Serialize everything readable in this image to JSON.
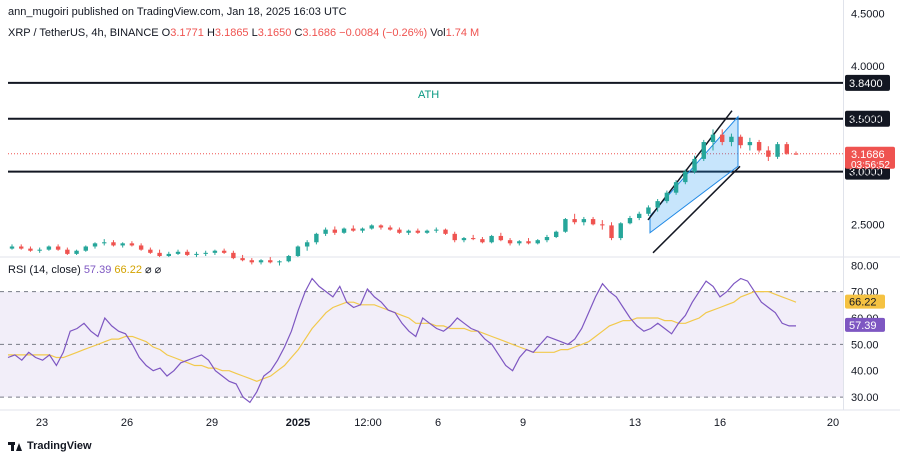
{
  "header": {
    "publisher": "ann_mugoiri published on TradingView.com, Jan 18, 2025 16:03 UTC",
    "symbol": "XRP / TetherUS, 4h, BINANCE",
    "o_label": "O",
    "o_value": "3.1771",
    "h_label": "H",
    "h_value": "3.1865",
    "l_label": "L",
    "l_value": "3.1650",
    "c_label": "C",
    "c_value": "3.1686",
    "change": "−0.0084 (−0.26%)",
    "vol_label": "Vol",
    "vol_value": "1.74 M"
  },
  "rsi_header": {
    "label": "RSI (14, close)",
    "value": "57.39",
    "ma_value": "66.22",
    "icons": "⌀ ⌀"
  },
  "footer": {
    "brand": "TradingView"
  },
  "colors": {
    "up": "#26a69a",
    "down": "#ef5350",
    "rsi": "#7e57c2",
    "rsi_ma": "#f2c94c",
    "channel": "#1e88e5",
    "ath_text": "#089981",
    "level": "#131722"
  },
  "chart_data": [
    {
      "type": "candlestick",
      "ylim": [
        2.2,
        4.55
      ],
      "y_ticks": [
        "2.5000",
        "3.0000",
        "3.5000",
        "4.0000",
        "4.5000"
      ],
      "x_ticks": [
        "23",
        "26",
        "29",
        "2025",
        "12:00",
        "6",
        "9",
        "13",
        "16",
        "20"
      ],
      "levels": [
        {
          "price": 3.84,
          "label": "3.8400"
        },
        {
          "price": 3.5,
          "label": "3.5000"
        },
        {
          "price": 3.0,
          "label": "3.0000"
        }
      ],
      "ath_label": "ATH",
      "last_price": {
        "price": 3.1686,
        "label": "3.1686",
        "countdown": "03:56:52"
      },
      "candles": [
        [
          2.27,
          2.31,
          2.26,
          2.29
        ],
        [
          2.29,
          2.31,
          2.26,
          2.27
        ],
        [
          2.27,
          2.29,
          2.24,
          2.25
        ],
        [
          2.25,
          2.28,
          2.23,
          2.26
        ],
        [
          2.26,
          2.3,
          2.25,
          2.29
        ],
        [
          2.29,
          2.31,
          2.25,
          2.26
        ],
        [
          2.26,
          2.28,
          2.21,
          2.22
        ],
        [
          2.22,
          2.26,
          2.21,
          2.25
        ],
        [
          2.25,
          2.3,
          2.24,
          2.29
        ],
        [
          2.29,
          2.33,
          2.27,
          2.32
        ],
        [
          2.32,
          2.36,
          2.3,
          2.33
        ],
        [
          2.33,
          2.35,
          2.29,
          2.3
        ],
        [
          2.3,
          2.33,
          2.28,
          2.32
        ],
        [
          2.32,
          2.34,
          2.29,
          2.3
        ],
        [
          2.3,
          2.32,
          2.25,
          2.26
        ],
        [
          2.26,
          2.28,
          2.22,
          2.23
        ],
        [
          2.23,
          2.26,
          2.19,
          2.2
        ],
        [
          2.2,
          2.24,
          2.19,
          2.22
        ],
        [
          2.22,
          2.26,
          2.21,
          2.24
        ],
        [
          2.24,
          2.26,
          2.2,
          2.21
        ],
        [
          2.21,
          2.24,
          2.19,
          2.22
        ],
        [
          2.22,
          2.25,
          2.2,
          2.23
        ],
        [
          2.23,
          2.26,
          2.21,
          2.25
        ],
        [
          2.25,
          2.27,
          2.22,
          2.23
        ],
        [
          2.23,
          2.25,
          2.17,
          2.18
        ],
        [
          2.18,
          2.21,
          2.15,
          2.16
        ],
        [
          2.16,
          2.18,
          2.12,
          2.14
        ],
        [
          2.14,
          2.17,
          2.12,
          2.16
        ],
        [
          2.16,
          2.19,
          2.13,
          2.14
        ],
        [
          2.14,
          2.16,
          2.11,
          2.15
        ],
        [
          2.15,
          2.21,
          2.14,
          2.2
        ],
        [
          2.2,
          2.3,
          2.19,
          2.29
        ],
        [
          2.29,
          2.35,
          2.25,
          2.33
        ],
        [
          2.33,
          2.42,
          2.31,
          2.41
        ],
        [
          2.41,
          2.47,
          2.39,
          2.45
        ],
        [
          2.45,
          2.48,
          2.4,
          2.42
        ],
        [
          2.42,
          2.47,
          2.41,
          2.46
        ],
        [
          2.46,
          2.49,
          2.43,
          2.44
        ],
        [
          2.44,
          2.47,
          2.42,
          2.46
        ],
        [
          2.46,
          2.5,
          2.45,
          2.49
        ],
        [
          2.49,
          2.5,
          2.45,
          2.47
        ],
        [
          2.47,
          2.49,
          2.44,
          2.45
        ],
        [
          2.45,
          2.47,
          2.41,
          2.42
        ],
        [
          2.42,
          2.45,
          2.4,
          2.44
        ],
        [
          2.44,
          2.46,
          2.41,
          2.42
        ],
        [
          2.42,
          2.45,
          2.41,
          2.44
        ],
        [
          2.44,
          2.47,
          2.42,
          2.45
        ],
        [
          2.45,
          2.46,
          2.4,
          2.41
        ],
        [
          2.41,
          2.43,
          2.33,
          2.35
        ],
        [
          2.35,
          2.38,
          2.33,
          2.37
        ],
        [
          2.37,
          2.4,
          2.35,
          2.36
        ],
        [
          2.36,
          2.38,
          2.32,
          2.33
        ],
        [
          2.33,
          2.4,
          2.32,
          2.39
        ],
        [
          2.39,
          2.42,
          2.34,
          2.35
        ],
        [
          2.35,
          2.37,
          2.3,
          2.32
        ],
        [
          2.32,
          2.35,
          2.3,
          2.34
        ],
        [
          2.34,
          2.37,
          2.31,
          2.32
        ],
        [
          2.32,
          2.36,
          2.31,
          2.35
        ],
        [
          2.35,
          2.4,
          2.33,
          2.38
        ],
        [
          2.38,
          2.44,
          2.37,
          2.43
        ],
        [
          2.43,
          2.56,
          2.42,
          2.55
        ],
        [
          2.55,
          2.6,
          2.5,
          2.52
        ],
        [
          2.52,
          2.57,
          2.49,
          2.55
        ],
        [
          2.55,
          2.57,
          2.49,
          2.5
        ],
        [
          2.5,
          2.54,
          2.45,
          2.49
        ],
        [
          2.49,
          2.52,
          2.35,
          2.37
        ],
        [
          2.37,
          2.52,
          2.35,
          2.51
        ],
        [
          2.51,
          2.58,
          2.5,
          2.56
        ],
        [
          2.56,
          2.62,
          2.54,
          2.6
        ],
        [
          2.6,
          2.68,
          2.58,
          2.66
        ],
        [
          2.66,
          2.74,
          2.62,
          2.72
        ],
        [
          2.72,
          2.82,
          2.7,
          2.8
        ],
        [
          2.8,
          2.92,
          2.78,
          2.9
        ],
        [
          2.9,
          3.02,
          2.88,
          3.0
        ],
        [
          3.0,
          3.15,
          2.98,
          3.12
        ],
        [
          3.12,
          3.3,
          3.1,
          3.28
        ],
        [
          3.28,
          3.4,
          3.2,
          3.35
        ],
        [
          3.35,
          3.4,
          3.25,
          3.28
        ],
        [
          3.28,
          3.36,
          3.24,
          3.33
        ],
        [
          3.33,
          3.35,
          3.22,
          3.25
        ],
        [
          3.25,
          3.32,
          3.2,
          3.28
        ],
        [
          3.28,
          3.3,
          3.18,
          3.2
        ],
        [
          3.2,
          3.24,
          3.1,
          3.14
        ],
        [
          3.14,
          3.28,
          3.12,
          3.26
        ],
        [
          3.26,
          3.28,
          3.16,
          3.17
        ],
        [
          3.17,
          3.19,
          3.16,
          3.1686
        ]
      ],
      "channel": {
        "lower": [
          [
            "2025-01-13",
            2.42
          ],
          [
            "2025-01-16",
            3.05
          ]
        ],
        "upper": [
          [
            "2025-01-13",
            2.58
          ],
          [
            "2025-01-16",
            3.52
          ]
        ]
      }
    },
    {
      "type": "line",
      "title": "RSI (14, close)",
      "ylim": [
        27,
        82
      ],
      "y_ticks": [
        "30.00",
        "40.00",
        "50.00",
        "60.00",
        "70.00",
        "80.00"
      ],
      "bands": [
        30,
        50,
        70
      ],
      "last_values": {
        "rsi": "57.39",
        "ma": "66.22"
      },
      "series": [
        {
          "name": "RSI",
          "values": [
            45,
            46,
            44,
            47,
            45,
            44,
            46,
            42,
            47,
            55,
            56,
            58,
            55,
            53,
            60,
            57,
            55,
            54,
            50,
            45,
            42,
            40,
            41,
            38,
            40,
            43,
            44,
            45,
            46,
            44,
            40,
            38,
            36,
            35,
            30,
            28,
            32,
            38,
            40,
            44,
            49,
            55,
            63,
            70,
            75,
            72,
            70,
            68,
            72,
            66,
            64,
            65,
            71,
            68,
            66,
            63,
            62,
            58,
            55,
            53,
            60,
            58,
            56,
            55,
            57,
            60,
            58,
            56,
            55,
            52,
            50,
            46,
            42,
            40,
            45,
            48,
            47,
            50,
            53,
            52,
            51,
            50,
            52,
            56,
            62,
            68,
            73,
            70,
            68,
            64,
            60,
            57,
            55,
            56,
            58,
            56,
            54,
            58,
            61,
            66,
            70,
            74,
            72,
            68,
            70,
            73,
            75,
            74,
            70,
            66,
            64,
            62,
            58,
            57,
            57
          ]
        },
        {
          "name": "RSI MA",
          "values": [
            46,
            46,
            46,
            46,
            46,
            46,
            46,
            45,
            45,
            46,
            47,
            48,
            49,
            50,
            51,
            52,
            52,
            53,
            53,
            52,
            51,
            49,
            48,
            46,
            45,
            44,
            43,
            42,
            42,
            41,
            41,
            40,
            40,
            39,
            38,
            37,
            36,
            37,
            38,
            40,
            42,
            45,
            48,
            52,
            56,
            59,
            62,
            64,
            65,
            66,
            66,
            65,
            65,
            65,
            64,
            63,
            62,
            61,
            60,
            58,
            58,
            58,
            57,
            57,
            56,
            56,
            56,
            55,
            55,
            54,
            53,
            52,
            51,
            50,
            49,
            48,
            47,
            47,
            47,
            47,
            48,
            48,
            49,
            50,
            51,
            53,
            55,
            57,
            58,
            59,
            59,
            60,
            60,
            60,
            60,
            59,
            59,
            58,
            58,
            59,
            60,
            62,
            63,
            64,
            65,
            66,
            68,
            69,
            70,
            70,
            70,
            69,
            68,
            67,
            66
          ]
        }
      ]
    }
  ]
}
